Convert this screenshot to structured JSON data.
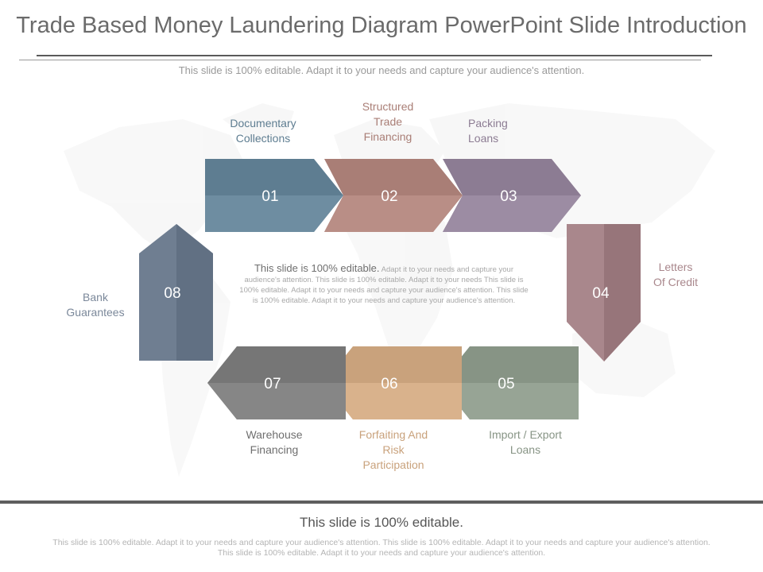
{
  "title": "Trade Based Money Laundering Diagram PowerPoint Slide Introduction",
  "subtitle": "This slide is 100% editable. Adapt it to your needs and capture your audience's attention.",
  "steps": [
    {
      "number": "01",
      "label": "Documentary\nCollections",
      "color": "#5e7d91",
      "label_color": "#5e7d91"
    },
    {
      "number": "02",
      "label": "Structured\nTrade\nFinancing",
      "color": "#a97e76",
      "label_color": "#a97e76"
    },
    {
      "number": "03",
      "label": "Packing\nLoans",
      "color": "#8c7c93",
      "label_color": "#8c7c93"
    },
    {
      "number": "04",
      "label": "Letters\nOf Credit",
      "color": "#a9878c",
      "label_color": "#a9878c"
    },
    {
      "number": "05",
      "label": "Import / Export\nLoans",
      "color": "#879485",
      "label_color": "#879485"
    },
    {
      "number": "06",
      "label": "Forfaiting And\nRisk\nParticipation",
      "color": "#c9a27c",
      "label_color": "#c9a27c"
    },
    {
      "number": "07",
      "label": "Warehouse\nFinancing",
      "color": "#767676",
      "label_color": "#6f6f6f"
    },
    {
      "number": "08",
      "label": "Bank\nGuarantees",
      "color": "#6f7e91",
      "label_color": "#7b889a"
    }
  ],
  "center": {
    "lead": "This slide is 100% editable.",
    "body": "Adapt it to your needs and capture your audience's attention. This slide is 100% editable. Adapt it to your needs This slide is 100% editable. Adapt it to your needs and capture your audience's attention. This slide is 100% editable. Adapt it to your needs and capture your audience's attention."
  },
  "footer": {
    "title": "This slide is 100% editable.",
    "text": "This slide is 100% editable. Adapt it to your needs and capture your audience's attention. This slide is 100% editable. Adapt it to your needs and capture your audience's attention. This slide is 100% editable. Adapt it to your needs and capture your audience's attention."
  }
}
